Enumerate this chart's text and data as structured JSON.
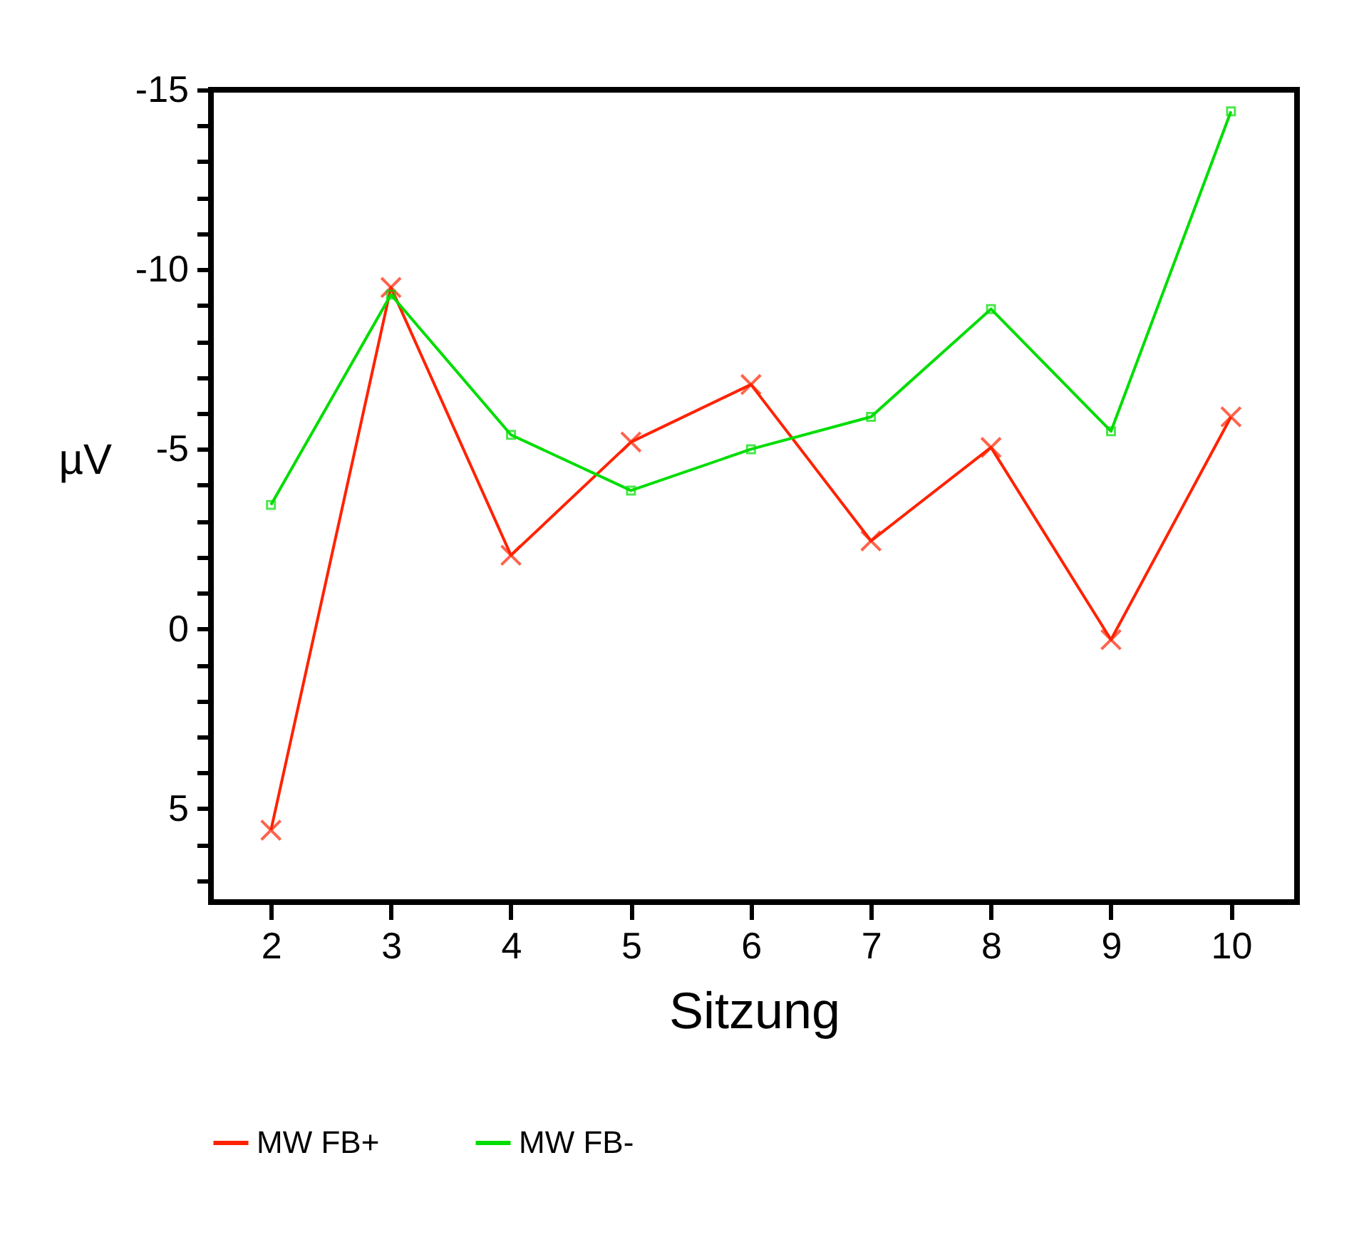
{
  "chart_data": {
    "type": "line",
    "xlabel": "Sitzung",
    "ylabel": "µV",
    "x": [
      2,
      3,
      4,
      5,
      6,
      7,
      8,
      9,
      10
    ],
    "xlim": [
      1.5,
      10.55
    ],
    "xticks": [
      2,
      3,
      4,
      5,
      6,
      7,
      8,
      9,
      10
    ],
    "ylim": [
      7.6,
      -15
    ],
    "yticks": [
      -15,
      {
        "value": -14,
        "label": null
      },
      {
        "value": -13,
        "label": null
      },
      {
        "value": -12,
        "label": null
      },
      {
        "value": -11,
        "label": null
      },
      -10,
      {
        "value": -9,
        "label": null
      },
      {
        "value": -8,
        "label": null
      },
      {
        "value": -7,
        "label": null
      },
      {
        "value": -6,
        "label": null
      },
      -5,
      {
        "value": -4,
        "label": null
      },
      {
        "value": -3,
        "label": null
      },
      {
        "value": -2,
        "label": null
      },
      {
        "value": -1,
        "label": null
      },
      0,
      {
        "value": 1,
        "label": null
      },
      {
        "value": 2,
        "label": null
      },
      {
        "value": 3,
        "label": null
      },
      {
        "value": 4,
        "label": null
      },
      5,
      {
        "value": 6,
        "label": null
      },
      {
        "value": 7,
        "label": null
      }
    ],
    "grid": false,
    "legend": "bottom",
    "line_style": "solid",
    "series": [
      {
        "name": "MW FB+",
        "color": "#ff2200",
        "marker": "cross",
        "values": [
          5.6,
          -9.5,
          -2.05,
          -5.2,
          -6.8,
          -2.45,
          -5.05,
          0.3,
          -5.9
        ]
      },
      {
        "name": "MW FB-",
        "color": "#00dd00",
        "marker": "square",
        "values": [
          -3.45,
          -9.3,
          -5.4,
          -3.85,
          -5.0,
          -5.9,
          -8.9,
          -5.5,
          -14.4
        ]
      }
    ]
  }
}
